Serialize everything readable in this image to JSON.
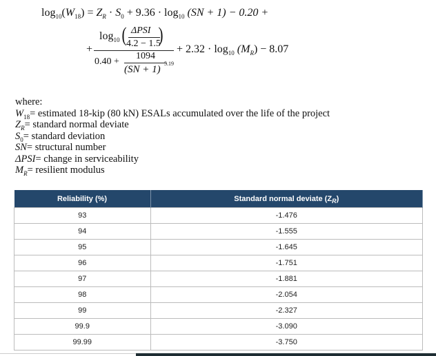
{
  "formula": {
    "line1": {
      "lhs": "log",
      "lhs_sub": "10",
      "w": "W",
      "w_sub": "18",
      "eq": "= ",
      "zr": "Z",
      "zr_sub": "R",
      "s0": "S",
      "s0_sub": "0",
      "mid": " + 9.36 · log",
      "mid_sub": "10",
      "sn": "(SN + 1) − 0.20 +"
    },
    "plus": "+",
    "num_log": "log",
    "num_log_sub": "10",
    "dpsi": "ΔPSI",
    "denom_inner": "4.2 − 1.5",
    "den_a": "0.40 +",
    "den_num": "1094",
    "den_den": "(SN + 1)",
    "den_exp": "5.19",
    "tail": "+ 2.32 · log",
    "tail_sub": "10",
    "tail_mr": "(M",
    "tail_mr_sub": "R",
    "tail_end": ") − 8.07"
  },
  "where": {
    "title": "where:",
    "items": [
      {
        "sym": "W",
        "sub": "18",
        "text": "= estimated 18-kip (80 kN) ESALs accumulated over the life of the project"
      },
      {
        "sym": "Z",
        "sub": "R",
        "text": "= standard normal deviate"
      },
      {
        "sym": "S",
        "sub": "0",
        "text": "= standard deviation"
      },
      {
        "sym": "SN",
        "sub": "",
        "text": "= structural number"
      },
      {
        "sym": "ΔPSI",
        "sub": "",
        "text": "= change in serviceability"
      },
      {
        "sym": "M",
        "sub": "R",
        "text": "= resilient modulus"
      }
    ]
  },
  "table": {
    "headers": [
      "Reliability (%)",
      "Standard normal deviate (Z",
      "R",
      ")"
    ],
    "rows": [
      [
        "93",
        "-1.476"
      ],
      [
        "94",
        "-1.555"
      ],
      [
        "95",
        "-1.645"
      ],
      [
        "96",
        "-1.751"
      ],
      [
        "97",
        "-1.881"
      ],
      [
        "98",
        "-2.054"
      ],
      [
        "99",
        "-2.327"
      ],
      [
        "99.9",
        "-3.090"
      ],
      [
        "99.99",
        "-3.750"
      ]
    ]
  }
}
